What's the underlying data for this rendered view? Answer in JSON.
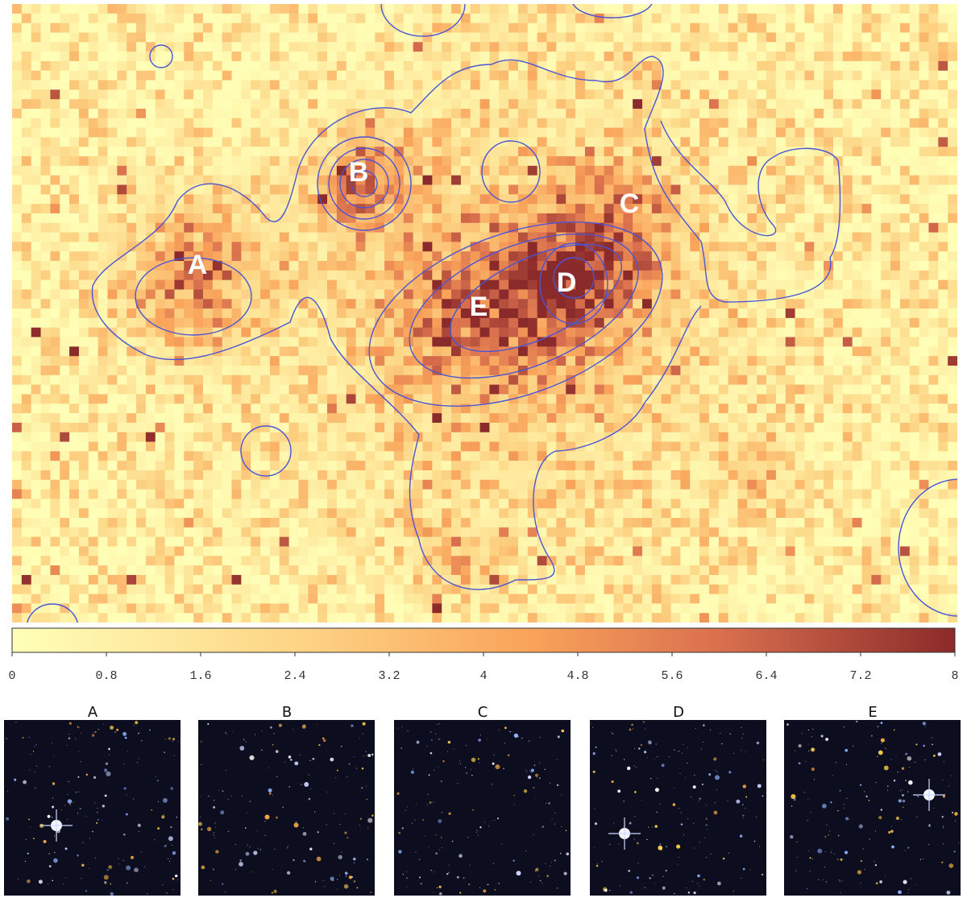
{
  "map": {
    "labels": [
      "A",
      "B",
      "C",
      "D",
      "E"
    ]
  },
  "colorbar": {
    "range": [
      0,
      8
    ],
    "ticks": [
      0,
      0.8,
      1.6,
      2.4,
      3.2,
      4,
      4.8,
      5.6,
      6.4,
      7.2,
      8
    ]
  },
  "thumbnails": [
    {
      "title": "A"
    },
    {
      "title": "B"
    },
    {
      "title": "C"
    },
    {
      "title": "D"
    },
    {
      "title": "E"
    }
  ]
}
